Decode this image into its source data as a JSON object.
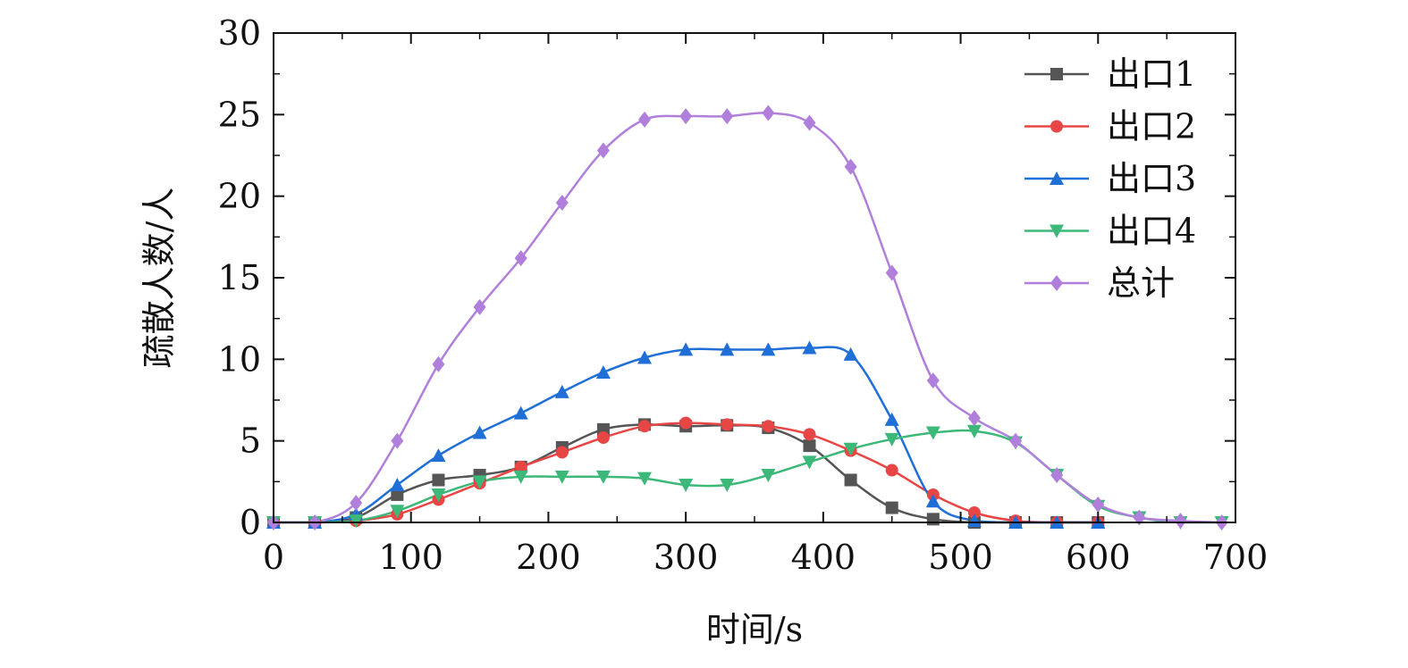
{
  "chart_data": {
    "type": "line",
    "title": "",
    "xlabel": "时间/s",
    "ylabel": "疏散人数/人",
    "xlim": [
      0,
      700
    ],
    "ylim": [
      0,
      30
    ],
    "xticks": [
      0,
      100,
      200,
      300,
      400,
      500,
      600,
      700
    ],
    "yticks": [
      0,
      5,
      10,
      15,
      20,
      25,
      30
    ],
    "grid": false,
    "legend_position": "top-right",
    "series": [
      {
        "name": "出口1",
        "color": "#555555",
        "marker": "square",
        "points": [
          [
            0,
            0
          ],
          [
            30,
            0
          ],
          [
            60,
            0.3
          ],
          [
            90,
            1.7
          ],
          [
            120,
            2.6
          ],
          [
            150,
            2.9
          ],
          [
            180,
            3.4
          ],
          [
            210,
            4.6
          ],
          [
            240,
            5.7
          ],
          [
            270,
            6.0
          ],
          [
            300,
            5.9
          ],
          [
            330,
            5.95
          ],
          [
            360,
            5.8
          ],
          [
            390,
            4.7
          ],
          [
            420,
            2.6
          ],
          [
            450,
            0.9
          ],
          [
            480,
            0.2
          ],
          [
            510,
            0
          ],
          [
            540,
            0
          ],
          [
            570,
            0
          ],
          [
            600,
            0
          ]
        ]
      },
      {
        "name": "出口2",
        "color": "#e84545",
        "marker": "circle",
        "points": [
          [
            0,
            0
          ],
          [
            30,
            0
          ],
          [
            60,
            0.1
          ],
          [
            90,
            0.5
          ],
          [
            120,
            1.4
          ],
          [
            150,
            2.4
          ],
          [
            180,
            3.4
          ],
          [
            210,
            4.3
          ],
          [
            240,
            5.2
          ],
          [
            270,
            5.9
          ],
          [
            300,
            6.1
          ],
          [
            330,
            6.0
          ],
          [
            360,
            5.9
          ],
          [
            390,
            5.4
          ],
          [
            420,
            4.4
          ],
          [
            450,
            3.2
          ],
          [
            480,
            1.7
          ],
          [
            510,
            0.6
          ],
          [
            540,
            0.1
          ],
          [
            570,
            0
          ],
          [
            600,
            0
          ]
        ]
      },
      {
        "name": "出口3",
        "color": "#1f6fd6",
        "marker": "triangle-up",
        "points": [
          [
            0,
            0
          ],
          [
            30,
            0
          ],
          [
            60,
            0.5
          ],
          [
            90,
            2.3
          ],
          [
            120,
            4.1
          ],
          [
            150,
            5.5
          ],
          [
            180,
            6.7
          ],
          [
            210,
            8.0
          ],
          [
            240,
            9.2
          ],
          [
            270,
            10.1
          ],
          [
            300,
            10.6
          ],
          [
            330,
            10.6
          ],
          [
            360,
            10.6
          ],
          [
            390,
            10.7
          ],
          [
            420,
            10.3
          ],
          [
            450,
            6.3
          ],
          [
            480,
            1.3
          ],
          [
            510,
            0.1
          ],
          [
            540,
            0
          ],
          [
            570,
            0
          ],
          [
            600,
            0
          ]
        ]
      },
      {
        "name": "出口4",
        "color": "#3cb878",
        "marker": "triangle-down",
        "points": [
          [
            0,
            0
          ],
          [
            30,
            0
          ],
          [
            60,
            0.1
          ],
          [
            90,
            0.7
          ],
          [
            120,
            1.7
          ],
          [
            150,
            2.5
          ],
          [
            180,
            2.8
          ],
          [
            210,
            2.8
          ],
          [
            240,
            2.8
          ],
          [
            270,
            2.7
          ],
          [
            300,
            2.3
          ],
          [
            330,
            2.3
          ],
          [
            360,
            2.9
          ],
          [
            390,
            3.7
          ],
          [
            420,
            4.5
          ],
          [
            450,
            5.1
          ],
          [
            480,
            5.5
          ],
          [
            510,
            5.6
          ],
          [
            540,
            4.9
          ],
          [
            570,
            2.9
          ],
          [
            600,
            1.0
          ],
          [
            630,
            0.3
          ],
          [
            660,
            0
          ],
          [
            690,
            0
          ]
        ]
      },
      {
        "name": "总计",
        "color": "#b07fdb",
        "marker": "diamond",
        "points": [
          [
            0,
            0
          ],
          [
            30,
            0
          ],
          [
            60,
            1.2
          ],
          [
            90,
            5.0
          ],
          [
            120,
            9.7
          ],
          [
            150,
            13.2
          ],
          [
            180,
            16.2
          ],
          [
            210,
            19.6
          ],
          [
            240,
            22.8
          ],
          [
            270,
            24.7
          ],
          [
            300,
            24.9
          ],
          [
            330,
            24.9
          ],
          [
            360,
            25.1
          ],
          [
            390,
            24.5
          ],
          [
            420,
            21.8
          ],
          [
            450,
            15.3
          ],
          [
            480,
            8.7
          ],
          [
            510,
            6.4
          ],
          [
            540,
            5.0
          ],
          [
            570,
            2.9
          ],
          [
            600,
            1.1
          ],
          [
            630,
            0.3
          ],
          [
            660,
            0.1
          ],
          [
            690,
            0
          ]
        ]
      }
    ]
  }
}
